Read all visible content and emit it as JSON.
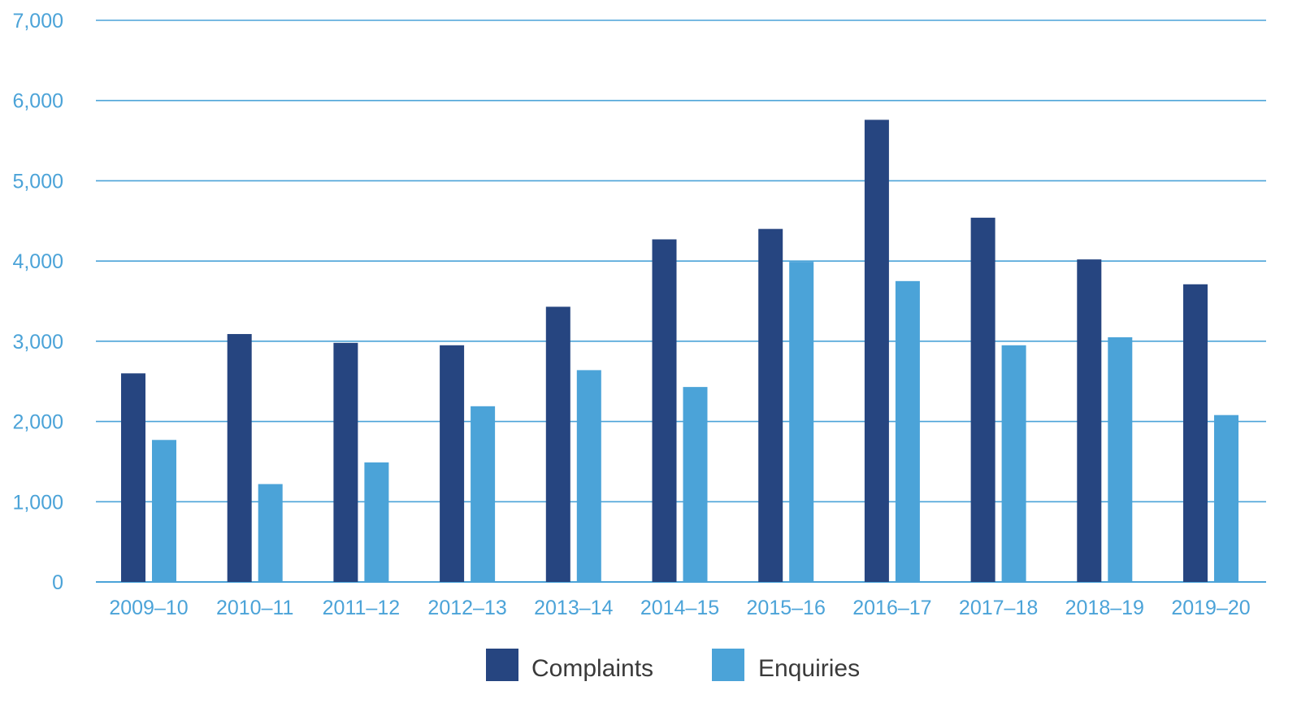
{
  "chart_data": {
    "type": "bar",
    "categories": [
      "2009–10",
      "2010–11",
      "2011–12",
      "2012–13",
      "2013–14",
      "2014–15",
      "2015–16",
      "2016–17",
      "2017–18",
      "2018–19",
      "2019–20"
    ],
    "series": [
      {
        "name": "Complaints",
        "color": "#264580",
        "values": [
          2600,
          3090,
          2980,
          2950,
          3430,
          4270,
          4400,
          5760,
          4540,
          4020,
          3710
        ]
      },
      {
        "name": "Enquiries",
        "color": "#4ba3d8",
        "values": [
          1770,
          1220,
          1490,
          2190,
          2640,
          2430,
          3990,
          3750,
          2950,
          3050,
          2080
        ]
      }
    ],
    "yticks": [
      "0",
      "1,000",
      "2,000",
      "3,000",
      "4,000",
      "5,000",
      "6,000",
      "7,000"
    ],
    "ylim": [
      0,
      7000
    ],
    "grid": true,
    "legend_position": "bottom-center",
    "colors": {
      "gridline": "#4ba3d8",
      "tick_text": "#4ba3d8",
      "legend_text": "#3a3a3a"
    }
  }
}
